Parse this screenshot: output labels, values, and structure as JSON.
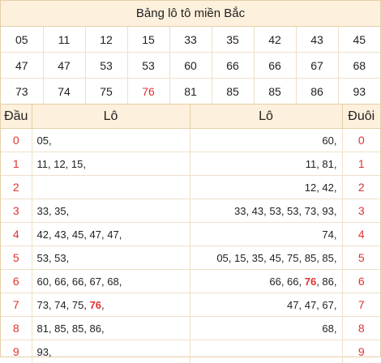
{
  "title": "Bảng lô tô miền Bắc",
  "numbers": [
    [
      "05",
      "11",
      "12",
      "15",
      "33",
      "35",
      "42",
      "43",
      "45"
    ],
    [
      "47",
      "47",
      "53",
      "53",
      "60",
      "66",
      "66",
      "67",
      "68"
    ],
    [
      "73",
      "74",
      "75",
      "76",
      "81",
      "85",
      "85",
      "86",
      "93"
    ]
  ],
  "highlight_color": "#e03232",
  "header": {
    "dau": "Đầu",
    "lo_left": "Lô",
    "lo_right": "Lô",
    "duoi": "Đuôi"
  },
  "rows": [
    {
      "dau": "0",
      "dau_lo": "05,",
      "duoi_lo": "60,",
      "duoi": "0"
    },
    {
      "dau": "1",
      "dau_lo": "11, 12, 15,",
      "duoi_lo": "11, 81,",
      "duoi": "1"
    },
    {
      "dau": "2",
      "dau_lo": "",
      "duoi_lo": "12, 42,",
      "duoi": "2"
    },
    {
      "dau": "3",
      "dau_lo": "33, 35,",
      "duoi_lo": "33, 43, 53, 53, 73, 93,",
      "duoi": "3"
    },
    {
      "dau": "4",
      "dau_lo": "42, 43, 45, 47, 47,",
      "duoi_lo": "74,",
      "duoi": "4"
    },
    {
      "dau": "5",
      "dau_lo": "53, 53,",
      "duoi_lo": "05, 15, 35, 45, 75, 85, 85,",
      "duoi": "5"
    },
    {
      "dau": "6",
      "dau_lo": "60, 66, 66, 67, 68,",
      "duoi_lo_pre": "66, 66, ",
      "duoi_lo_hi": "76",
      "duoi_lo_post": ", 86,",
      "duoi": "6"
    },
    {
      "dau": "7",
      "dau_lo_pre": "73, 74, 75, ",
      "dau_lo_hi": "76",
      "dau_lo_post": ",",
      "duoi_lo": "47, 47, 67,",
      "duoi": "7"
    },
    {
      "dau": "8",
      "dau_lo": "81, 85, 85, 86,",
      "duoi_lo": "68,",
      "duoi": "8"
    },
    {
      "dau": "9",
      "dau_lo": "93,",
      "duoi_lo": "",
      "duoi": "9"
    }
  ]
}
